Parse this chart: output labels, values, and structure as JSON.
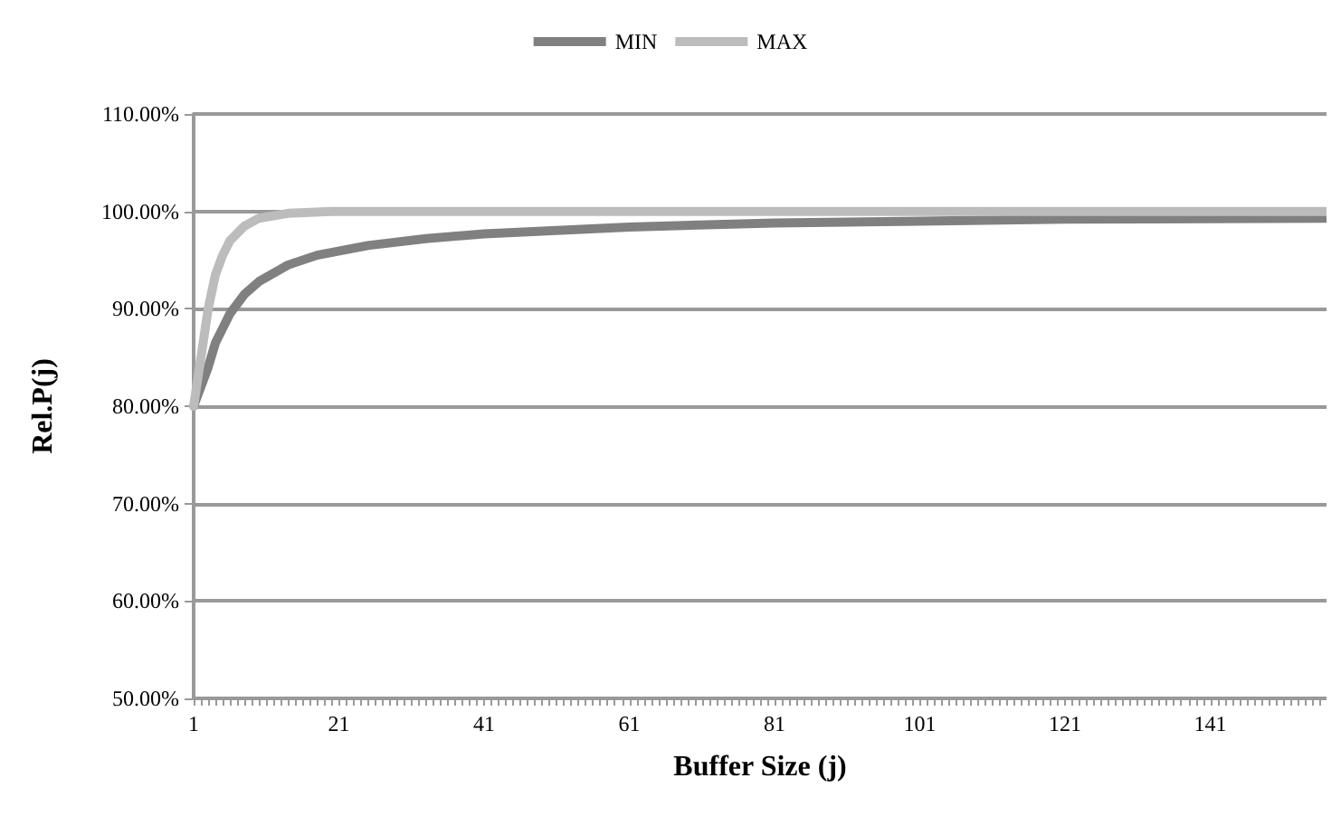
{
  "chart_data": {
    "type": "line",
    "xlabel": "Buffer Size (j)",
    "ylabel": "Rel.P(j)",
    "xlim": [
      1,
      157
    ],
    "xticks": [
      1,
      21,
      41,
      61,
      81,
      101,
      121,
      141
    ],
    "ylim": [
      50,
      110
    ],
    "yticks": [
      {
        "value": 50,
        "label": "50.00%"
      },
      {
        "value": 60,
        "label": "60.00%"
      },
      {
        "value": 70,
        "label": "70.00%"
      },
      {
        "value": 80,
        "label": "80.00%"
      },
      {
        "value": 90,
        "label": "90.00%"
      },
      {
        "value": 100,
        "label": "100.00%"
      },
      {
        "value": 110,
        "label": "110.00%"
      }
    ],
    "grid": "y",
    "legend": "top",
    "marker": "none",
    "series": [
      {
        "name": "MIN",
        "color": "#808080",
        "x": [
          1,
          2,
          3,
          4,
          5,
          6,
          8,
          10,
          14,
          18,
          25,
          33,
          41,
          61,
          81,
          101,
          121,
          157
        ],
        "values": [
          80,
          82,
          84,
          86.5,
          88,
          89.5,
          91.5,
          92.8,
          94.5,
          95.5,
          96.5,
          97.2,
          97.7,
          98.4,
          98.8,
          99,
          99.2,
          99.3
        ]
      },
      {
        "name": "MAX",
        "color": "#bcbcbc",
        "x": [
          1,
          2,
          3,
          4,
          5,
          6,
          8,
          10,
          14,
          20,
          157
        ],
        "values": [
          80,
          85,
          90,
          93.5,
          95.5,
          97,
          98.5,
          99.3,
          99.8,
          100,
          100
        ]
      }
    ]
  }
}
